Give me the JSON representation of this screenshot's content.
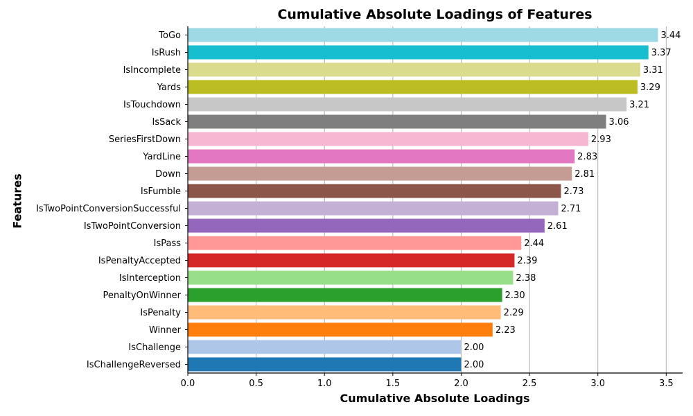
{
  "chart_data": {
    "type": "bar",
    "orientation": "horizontal",
    "title": "Cumulative Absolute Loadings of Features",
    "xlabel": "Cumulative Absolute Loadings",
    "ylabel": "Features",
    "xlim": [
      0,
      3.62
    ],
    "xticks": [
      "0.0",
      "0.5",
      "1.0",
      "1.5",
      "2.0",
      "2.5",
      "3.0",
      "3.5"
    ],
    "grid": "vertical",
    "bars": [
      {
        "label": "ToGo",
        "value": 3.44,
        "value_label": "3.44",
        "color": "#9edae5"
      },
      {
        "label": "IsRush",
        "value": 3.37,
        "value_label": "3.37",
        "color": "#17becf"
      },
      {
        "label": "IsIncomplete",
        "value": 3.31,
        "value_label": "3.31",
        "color": "#dbdb8d"
      },
      {
        "label": "Yards",
        "value": 3.29,
        "value_label": "3.29",
        "color": "#bcbd22"
      },
      {
        "label": "IsTouchdown",
        "value": 3.21,
        "value_label": "3.21",
        "color": "#c7c7c7"
      },
      {
        "label": "IsSack",
        "value": 3.06,
        "value_label": "3.06",
        "color": "#7f7f7f"
      },
      {
        "label": "SeriesFirstDown",
        "value": 2.93,
        "value_label": "2.93",
        "color": "#f7b6d2"
      },
      {
        "label": "YardLine",
        "value": 2.83,
        "value_label": "2.83",
        "color": "#e377c2"
      },
      {
        "label": "Down",
        "value": 2.81,
        "value_label": "2.81",
        "color": "#c49c94"
      },
      {
        "label": "IsFumble",
        "value": 2.73,
        "value_label": "2.73",
        "color": "#8c564b"
      },
      {
        "label": "IsTwoPointConversionSuccessful",
        "value": 2.71,
        "value_label": "2.71",
        "color": "#c5b0d5"
      },
      {
        "label": "IsTwoPointConversion",
        "value": 2.61,
        "value_label": "2.61",
        "color": "#9467bd"
      },
      {
        "label": "IsPass",
        "value": 2.44,
        "value_label": "2.44",
        "color": "#ff9896"
      },
      {
        "label": "IsPenaltyAccepted",
        "value": 2.39,
        "value_label": "2.39",
        "color": "#d62728"
      },
      {
        "label": "IsInterception",
        "value": 2.38,
        "value_label": "2.38",
        "color": "#98df8a"
      },
      {
        "label": "PenaltyOnWinner",
        "value": 2.3,
        "value_label": "2.30",
        "color": "#2ca02c"
      },
      {
        "label": "IsPenalty",
        "value": 2.29,
        "value_label": "2.29",
        "color": "#ffbb78"
      },
      {
        "label": "Winner",
        "value": 2.23,
        "value_label": "2.23",
        "color": "#ff7f0e"
      },
      {
        "label": "IsChallenge",
        "value": 2.0,
        "value_label": "2.00",
        "color": "#aec7e8"
      },
      {
        "label": "IsChallengeReversed",
        "value": 2.0,
        "value_label": "2.00",
        "color": "#1f77b4"
      }
    ]
  }
}
